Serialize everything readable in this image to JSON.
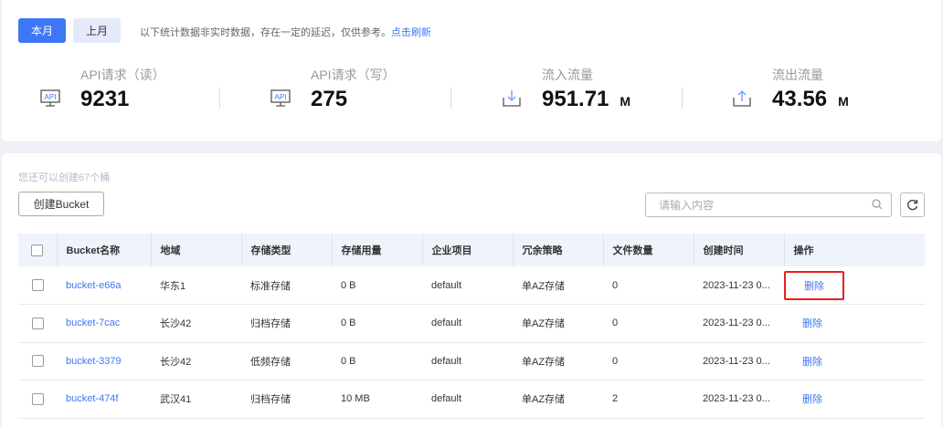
{
  "period": {
    "current": "本月",
    "previous": "上月"
  },
  "notice": {
    "text": "以下统计数据非实时数据，存在一定的延迟，仅供参考。",
    "refresh_link": "点击刷新"
  },
  "stats": [
    {
      "label": "API请求（读）",
      "value": "9231",
      "unit": "",
      "icon": "api-monitor-icon"
    },
    {
      "label": "API请求（写）",
      "value": "275",
      "unit": "",
      "icon": "api-monitor-icon"
    },
    {
      "label": "流入流量",
      "value": "951.71",
      "unit": "M",
      "icon": "download-icon"
    },
    {
      "label": "流出流量",
      "value": "43.56",
      "unit": "M",
      "icon": "upload-icon"
    }
  ],
  "quota_text": "您还可以创建67个桶",
  "create_button": "创建Bucket",
  "search": {
    "placeholder": "请输入内容",
    "value": ""
  },
  "table": {
    "headers": [
      "Bucket名称",
      "地域",
      "存储类型",
      "存储用量",
      "企业项目",
      "冗余策略",
      "文件数量",
      "创建时间",
      "操作"
    ],
    "rows": [
      {
        "name": "bucket-e66a",
        "region": "华东1",
        "type": "标准存储",
        "usage": "0 B",
        "project": "default",
        "redundancy": "单AZ存储",
        "files": "0",
        "created": "2023-11-23 0...",
        "action": "删除"
      },
      {
        "name": "bucket-7cac",
        "region": "长沙42",
        "type": "归档存储",
        "usage": "0 B",
        "project": "default",
        "redundancy": "单AZ存储",
        "files": "0",
        "created": "2023-11-23 0...",
        "action": "删除"
      },
      {
        "name": "bucket-3379",
        "region": "长沙42",
        "type": "低频存储",
        "usage": "0 B",
        "project": "default",
        "redundancy": "单AZ存储",
        "files": "0",
        "created": "2023-11-23 0...",
        "action": "删除"
      },
      {
        "name": "bucket-474f",
        "region": "武汉41",
        "type": "归档存储",
        "usage": "10 MB",
        "project": "default",
        "redundancy": "单AZ存储",
        "files": "2",
        "created": "2023-11-23 0...",
        "action": "删除"
      }
    ]
  },
  "colors": {
    "accent": "#3d77f5",
    "highlight": "#e82020",
    "header_bg": "#eff3fb"
  }
}
